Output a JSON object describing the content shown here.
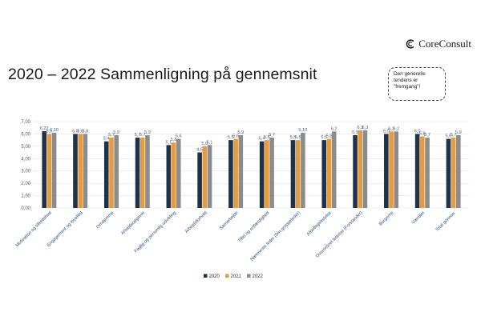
{
  "brand": {
    "name": "CoreConsult"
  },
  "title": "2020 – 2022 Sammenligning på gennemsnit",
  "callout": {
    "text": "Den generelle tendens er \"fremgang\"!"
  },
  "colors": {
    "2020": "#1f3346",
    "2021": "#e79a3e",
    "2022": "#8c8c8c"
  },
  "chart_data": {
    "type": "bar",
    "categories": [
      "Motivation og tilfredshed",
      "Engagement og loyalitet",
      "Omdømme",
      "Arbejdsopgaver",
      "Faglig og personlig udvikling",
      "Arbejdsforhold",
      "Samarbejde",
      "Tillid og retfærdighed",
      "Nærmeste leder (Din gruppeleder)",
      "Afdelingsledelse",
      "Overordnet ledelse (Forstander)",
      "Borgerne",
      "Værdier",
      "Total gennsn."
    ],
    "series": [
      {
        "name": "2020",
        "values": [
          6.22,
          6.0,
          5.4,
          5.7,
          5.1,
          4.5,
          5.5,
          5.4,
          5.5,
          5.5,
          5.9,
          6.0,
          6.0,
          5.6
        ],
        "labels": [
          "6,22",
          "6,0",
          "5,4",
          "5,7",
          "5,1",
          "4,5",
          "5,5",
          "5,4",
          "5,5",
          "5,5",
          "5,9",
          "6,0",
          "6,0",
          "5,6"
        ]
      },
      {
        "name": "2021",
        "values": [
          6.0,
          6.0,
          5.7,
          5.7,
          5.3,
          5.0,
          5.6,
          5.5,
          5.5,
          5.6,
          6.3,
          6.2,
          5.8,
          5.7
        ],
        "labels": [
          "6,0",
          "6,0",
          "5,7",
          "5,7",
          "5,3",
          "5,0",
          "5,6",
          "5,5",
          "5,5",
          "5,6",
          "6,3",
          "6,2",
          "5,8",
          "5,7"
        ]
      },
      {
        "name": "2022",
        "values": [
          6.1,
          6.0,
          5.9,
          5.9,
          5.6,
          5.1,
          5.9,
          5.7,
          6.1,
          6.2,
          6.3,
          6.2,
          5.7,
          5.9
        ],
        "labels": [
          "6,10",
          "6,0",
          "5,9",
          "5,9",
          "5,6",
          "5,1",
          "5,9",
          "5,7",
          "6,10",
          "6,2",
          "6,3",
          "6,2",
          "5,7",
          "5,9"
        ]
      }
    ],
    "yticks": [
      "0,00",
      "1,00",
      "2,00",
      "3,00",
      "4,00",
      "5,00",
      "6,00",
      "7,00"
    ],
    "ylim": [
      0,
      7
    ],
    "grid": true,
    "legend": "bottom-center"
  }
}
